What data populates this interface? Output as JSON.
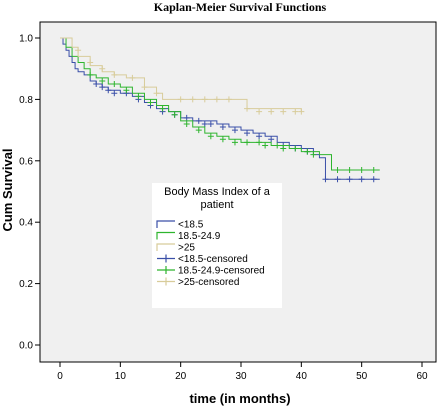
{
  "chart_data": {
    "type": "line",
    "title": "Kaplan-Meier Survival Functions",
    "xlabel": "time (in months)",
    "ylabel": "Cum Survival",
    "xlim": [
      0,
      60
    ],
    "ylim": [
      0.0,
      1.0
    ],
    "x_ticks": [
      "0",
      "10",
      "20",
      "30",
      "40",
      "50",
      "60"
    ],
    "y_ticks": [
      "0.0",
      "0.2",
      "0.4",
      "0.6",
      "0.8",
      "1.0"
    ],
    "grid": false,
    "legend": {
      "title_lines": [
        "Body Mass Index of a",
        "patient"
      ],
      "placement": "center-left",
      "entries": [
        {
          "label": "<18.5",
          "color": "#3a4fa8",
          "style": "step"
        },
        {
          "label": "18.5-24.9",
          "color": "#2eb52e",
          "style": "step"
        },
        {
          "label": ">25",
          "color": "#d8cc9a",
          "style": "step"
        },
        {
          "label": "<18.5-censored",
          "color": "#3a4fa8",
          "style": "censor"
        },
        {
          "label": "18.5-24.9-censored",
          "color": "#2eb52e",
          "style": "censor"
        },
        {
          "label": ">25-censored",
          "color": "#d8cc9a",
          "style": "censor"
        }
      ]
    },
    "series": [
      {
        "name": "<18.5",
        "color": "#3a4fa8",
        "steps": [
          [
            0,
            1.0
          ],
          [
            0.5,
            0.98
          ],
          [
            1,
            0.96
          ],
          [
            1.5,
            0.94
          ],
          [
            2,
            0.92
          ],
          [
            2.5,
            0.9
          ],
          [
            3,
            0.89
          ],
          [
            4,
            0.88
          ],
          [
            5,
            0.86
          ],
          [
            6,
            0.85
          ],
          [
            7,
            0.84
          ],
          [
            8,
            0.83
          ],
          [
            10,
            0.82
          ],
          [
            12,
            0.81
          ],
          [
            14,
            0.79
          ],
          [
            16,
            0.77
          ],
          [
            18,
            0.76
          ],
          [
            20,
            0.74
          ],
          [
            22,
            0.73
          ],
          [
            26,
            0.72
          ],
          [
            28,
            0.71
          ],
          [
            30,
            0.7
          ],
          [
            32,
            0.69
          ],
          [
            34,
            0.68
          ],
          [
            36,
            0.66
          ],
          [
            38,
            0.65
          ],
          [
            40,
            0.64
          ],
          [
            42,
            0.62
          ],
          [
            43,
            0.61
          ],
          [
            44,
            0.54
          ],
          [
            53,
            0.54
          ]
        ],
        "censored": [
          [
            6,
            0.85
          ],
          [
            7,
            0.84
          ],
          [
            8,
            0.83
          ],
          [
            9,
            0.82
          ],
          [
            11,
            0.82
          ],
          [
            13,
            0.8
          ],
          [
            15,
            0.78
          ],
          [
            17,
            0.76
          ],
          [
            19,
            0.75
          ],
          [
            21,
            0.74
          ],
          [
            23,
            0.73
          ],
          [
            24,
            0.72
          ],
          [
            25,
            0.72
          ],
          [
            27,
            0.71
          ],
          [
            29,
            0.7
          ],
          [
            31,
            0.69
          ],
          [
            33,
            0.68
          ],
          [
            35,
            0.67
          ],
          [
            37,
            0.65
          ],
          [
            39,
            0.64
          ],
          [
            41,
            0.63
          ],
          [
            44,
            0.54
          ],
          [
            46,
            0.54
          ],
          [
            48,
            0.54
          ],
          [
            50,
            0.54
          ],
          [
            52,
            0.54
          ]
        ]
      },
      {
        "name": "18.5-24.9",
        "color": "#2eb52e",
        "steps": [
          [
            0,
            1.0
          ],
          [
            1,
            0.97
          ],
          [
            2,
            0.94
          ],
          [
            3,
            0.92
          ],
          [
            4,
            0.9
          ],
          [
            5,
            0.88
          ],
          [
            6,
            0.87
          ],
          [
            8,
            0.85
          ],
          [
            10,
            0.84
          ],
          [
            12,
            0.82
          ],
          [
            14,
            0.8
          ],
          [
            16,
            0.78
          ],
          [
            18,
            0.76
          ],
          [
            20,
            0.73
          ],
          [
            22,
            0.71
          ],
          [
            24,
            0.69
          ],
          [
            26,
            0.68
          ],
          [
            28,
            0.67
          ],
          [
            30,
            0.66
          ],
          [
            32,
            0.66
          ],
          [
            35,
            0.65
          ],
          [
            38,
            0.64
          ],
          [
            40,
            0.63
          ],
          [
            43,
            0.62
          ],
          [
            45,
            0.57
          ],
          [
            53,
            0.57
          ]
        ],
        "censored": [
          [
            5,
            0.88
          ],
          [
            7,
            0.86
          ],
          [
            9,
            0.85
          ],
          [
            11,
            0.83
          ],
          [
            13,
            0.81
          ],
          [
            15,
            0.79
          ],
          [
            17,
            0.77
          ],
          [
            19,
            0.75
          ],
          [
            21,
            0.72
          ],
          [
            23,
            0.7
          ],
          [
            25,
            0.68
          ],
          [
            27,
            0.67
          ],
          [
            29,
            0.66
          ],
          [
            31,
            0.66
          ],
          [
            33,
            0.66
          ],
          [
            34,
            0.65
          ],
          [
            36,
            0.65
          ],
          [
            37,
            0.64
          ],
          [
            39,
            0.64
          ],
          [
            41,
            0.63
          ],
          [
            42,
            0.62
          ],
          [
            46,
            0.57
          ],
          [
            48,
            0.57
          ],
          [
            50,
            0.57
          ],
          [
            52,
            0.57
          ]
        ]
      },
      {
        "name": ">25",
        "color": "#d8cc9a",
        "steps": [
          [
            0,
            1.0
          ],
          [
            2,
            0.97
          ],
          [
            3,
            0.94
          ],
          [
            5,
            0.91
          ],
          [
            7,
            0.89
          ],
          [
            9,
            0.88
          ],
          [
            11,
            0.87
          ],
          [
            14,
            0.84
          ],
          [
            16,
            0.82
          ],
          [
            17,
            0.8
          ],
          [
            30,
            0.8
          ],
          [
            31,
            0.77
          ],
          [
            40,
            0.76
          ]
        ],
        "censored": [
          [
            3,
            0.96
          ],
          [
            5,
            0.92
          ],
          [
            7,
            0.9
          ],
          [
            9,
            0.88
          ],
          [
            12,
            0.87
          ],
          [
            14,
            0.84
          ],
          [
            16,
            0.82
          ],
          [
            20,
            0.8
          ],
          [
            22,
            0.8
          ],
          [
            24,
            0.8
          ],
          [
            26,
            0.8
          ],
          [
            28,
            0.8
          ],
          [
            31,
            0.77
          ],
          [
            33,
            0.76
          ],
          [
            35,
            0.76
          ],
          [
            37,
            0.76
          ],
          [
            39,
            0.76
          ],
          [
            40,
            0.76
          ]
        ]
      }
    ]
  }
}
